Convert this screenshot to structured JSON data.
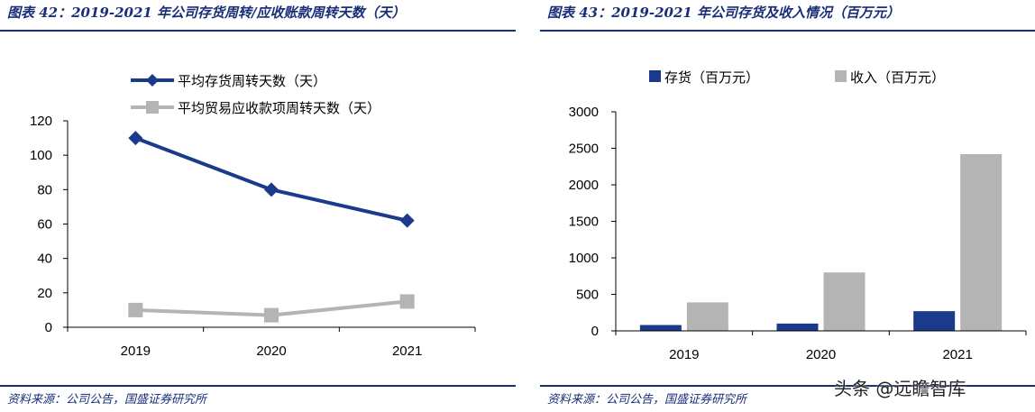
{
  "left": {
    "title": "图表 42：2019-2021 年公司存货周转/应收账款周转天数（天）",
    "source": "资料来源：公司公告，国盛证券研究所"
  },
  "right": {
    "title": "图表 43：2019-2021 年公司存货及收入情况（百万元）",
    "source": "资料来源：公司公告，国盛证券研究所"
  },
  "watermark": "头条 @远瞻智库",
  "colors": {
    "navy": "#1a3a8c",
    "gray": "#b4b4b4",
    "title": "#1a2e78"
  },
  "chart_data": [
    {
      "type": "line",
      "categories": [
        "2019",
        "2020",
        "2021"
      ],
      "series": [
        {
          "name": "平均存货周转天数（天）",
          "values": [
            110,
            80,
            62
          ],
          "marker": "diamond",
          "color": "#1a3a8c"
        },
        {
          "name": "平均贸易应收款项周转天数（天）",
          "values": [
            10,
            7,
            15
          ],
          "marker": "square",
          "color": "#b4b4b4"
        }
      ],
      "ylim": [
        0,
        120
      ],
      "yticks": [
        "0",
        "20",
        "40",
        "60",
        "80",
        "100",
        "120"
      ],
      "legend_position": "top"
    },
    {
      "type": "bar",
      "categories": [
        "2019",
        "2020",
        "2021"
      ],
      "series": [
        {
          "name": "存货（百万元）",
          "values": [
            80,
            100,
            270
          ],
          "color": "#1a3a8c"
        },
        {
          "name": "收入（百万元）",
          "values": [
            390,
            800,
            2420
          ],
          "color": "#b4b4b4"
        }
      ],
      "ylim": [
        0,
        3000
      ],
      "yticks": [
        "0",
        "500",
        "1000",
        "1500",
        "2000",
        "2500",
        "3000"
      ],
      "legend_position": "top"
    }
  ]
}
